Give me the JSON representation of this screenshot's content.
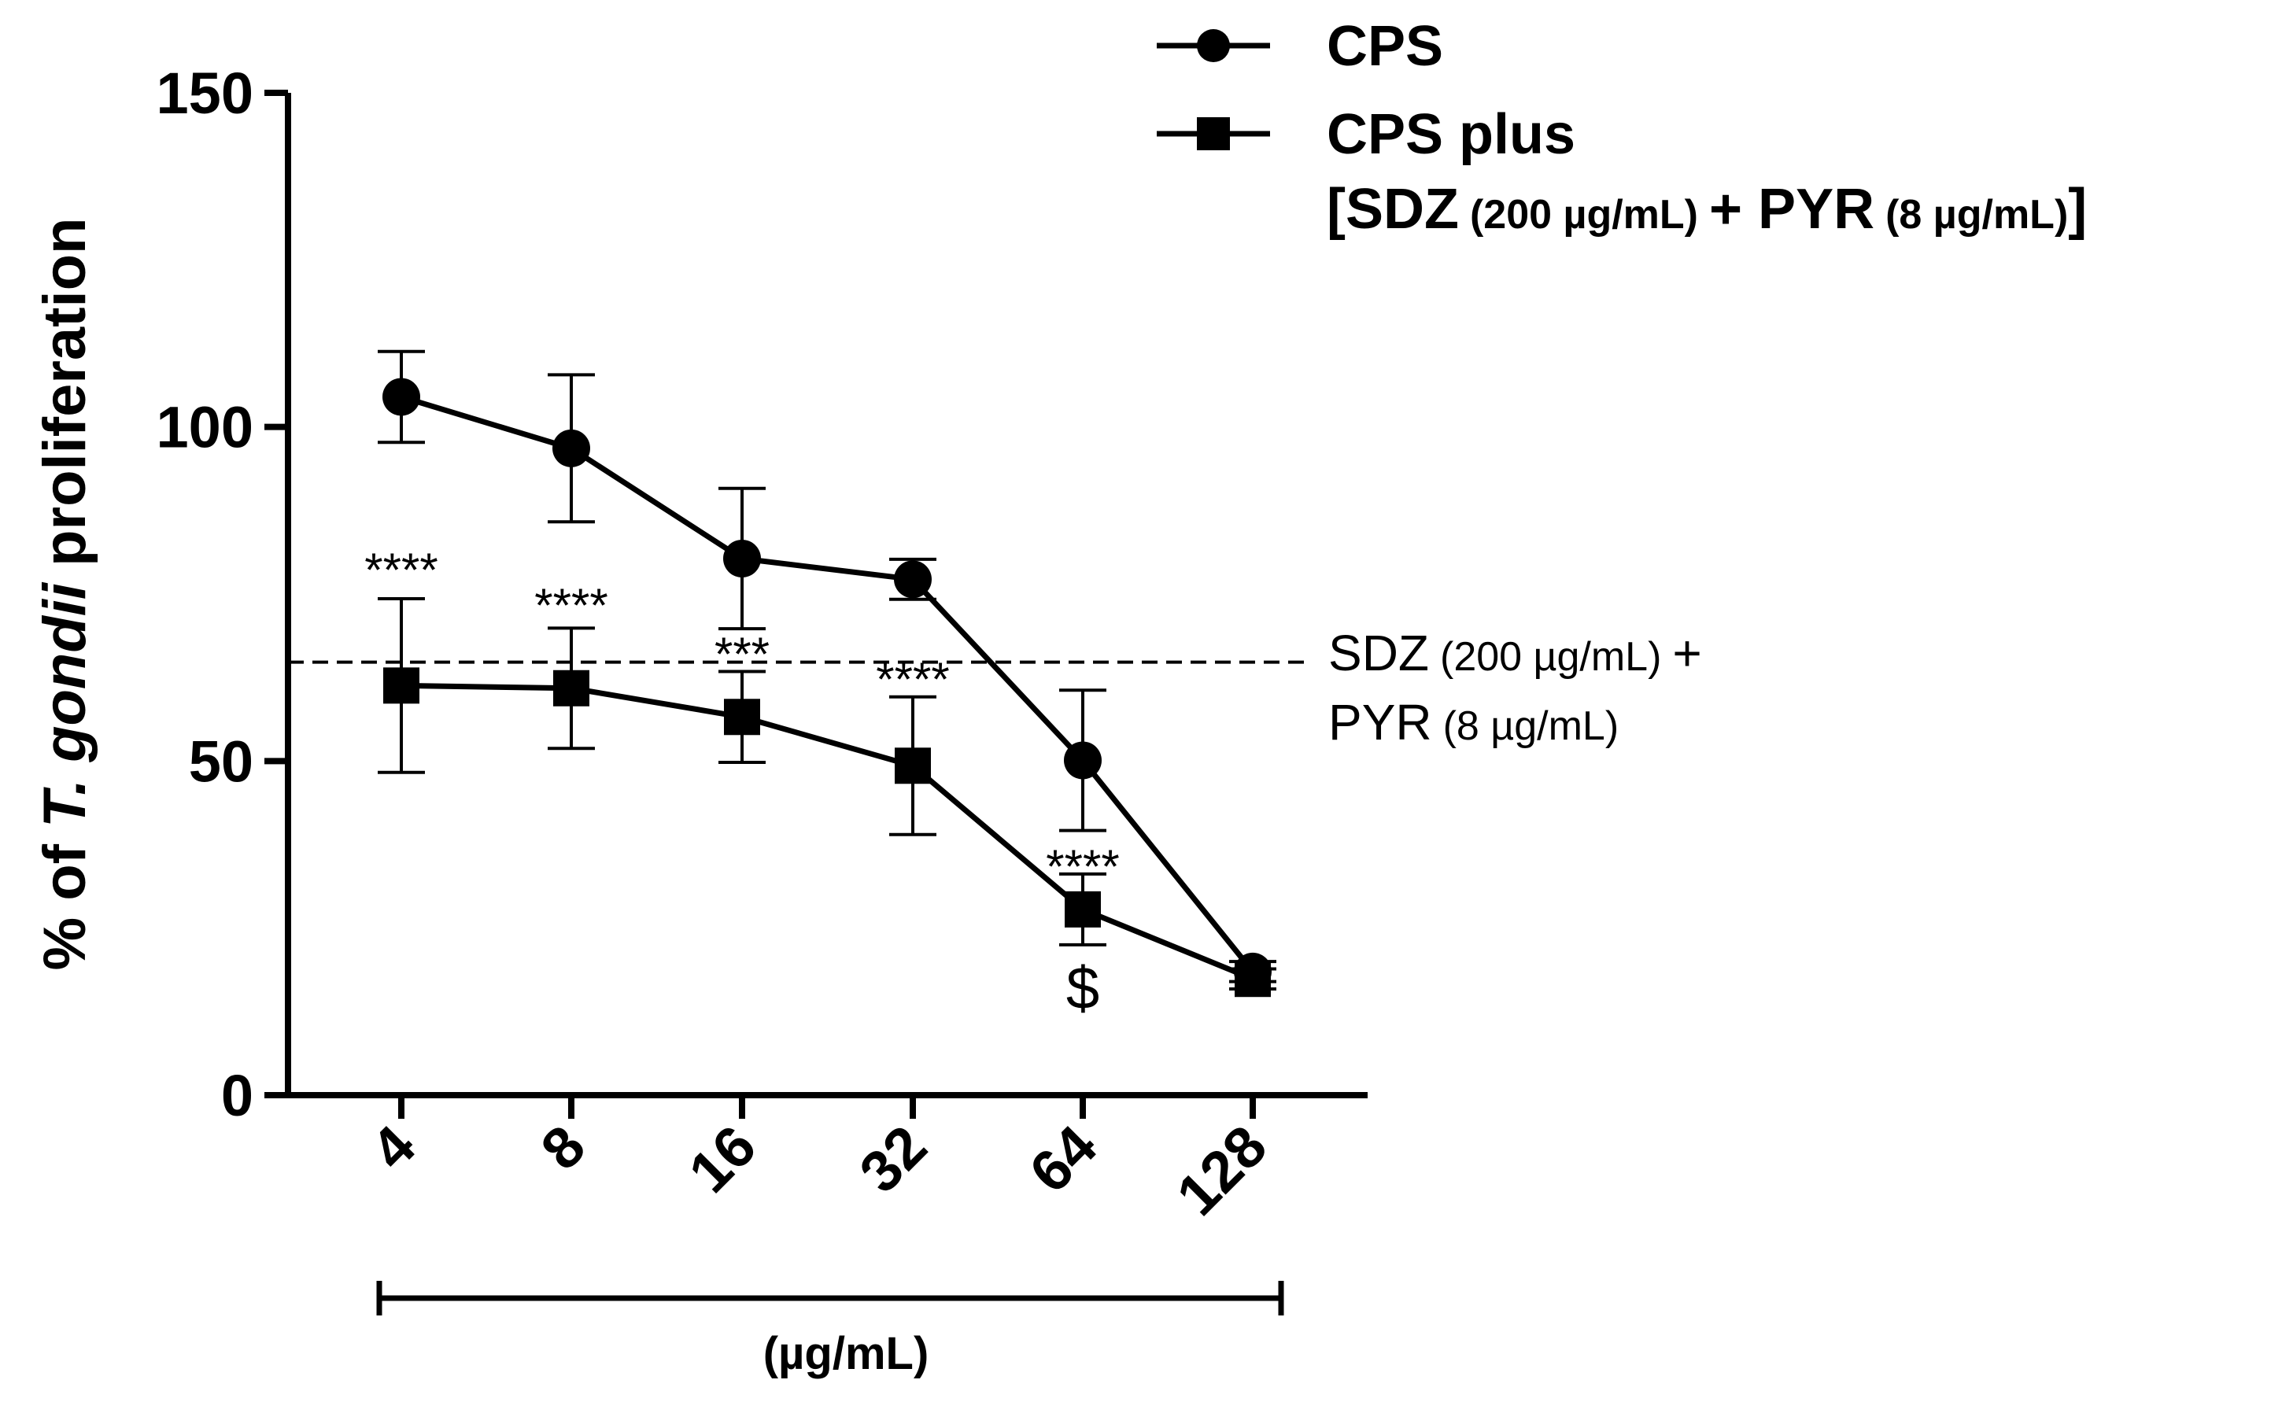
{
  "chart_data": {
    "type": "line",
    "categories": [
      "4",
      "8",
      "16",
      "32",
      "64",
      "128"
    ],
    "ylabel": {
      "prefix": "% of ",
      "italic": "T. gondii",
      "suffix": " proliferation"
    },
    "xlabel": "(µg/mL)",
    "yticks": [
      "0",
      "50",
      "100",
      "150"
    ],
    "ylim": [
      0,
      150
    ],
    "series": [
      {
        "name": "CPS",
        "marker": "circle",
        "values": [
          104.5,
          96.8,
          80.3,
          77.2,
          50.1,
          18.5
        ],
        "errors": [
          6.8,
          11.0,
          10.5,
          3.0,
          10.5,
          1.5
        ]
      },
      {
        "name": "CPS plus [SDZ (200 µg/mL) + PYR (8 µg/mL)]",
        "marker": "square",
        "values": [
          61.3,
          60.9,
          56.6,
          49.3,
          27.8,
          17.4
        ],
        "errors": [
          13.0,
          9.0,
          6.8,
          10.3,
          5.3,
          1.5
        ]
      }
    ],
    "reference_line": {
      "value": 64.8,
      "label_line1": {
        "main": "SDZ",
        "small": "(200 µg/mL)",
        "tail": "+"
      },
      "label_line2": {
        "main": "PYR",
        "small": "(8 µg/mL)"
      }
    },
    "annotations": [
      "****",
      "****",
      "***",
      "****",
      "****",
      "$"
    ],
    "legend": {
      "entry1": "CPS",
      "entry2_line1": "CPS plus",
      "entry2_line2": {
        "open": "[SDZ",
        "dose1": "(200 µg/mL)",
        "mid": "+ PYR",
        "dose2": "(8 µg/mL)",
        "close": "]"
      }
    }
  }
}
